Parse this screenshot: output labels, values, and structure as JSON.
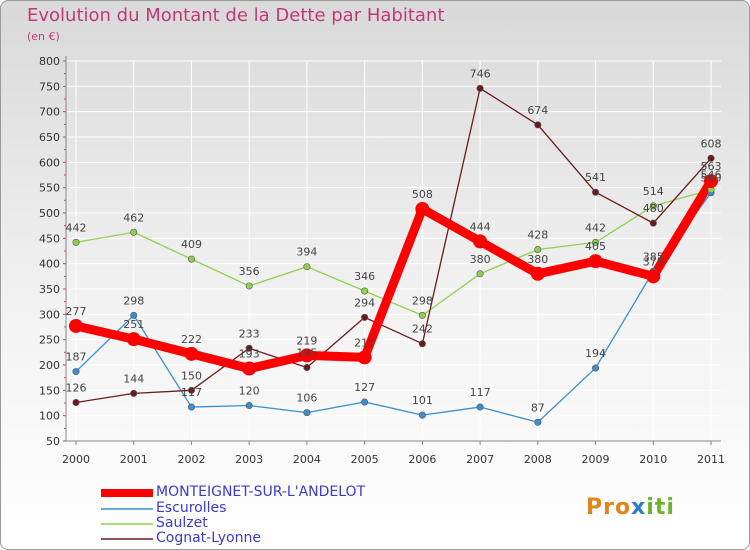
{
  "title": "Evolution du Montant de la Dette par Habitant",
  "unit": "(en €)",
  "logo_text": "Proxiti",
  "chart_data": {
    "type": "line",
    "x": [
      "2000",
      "2001",
      "2002",
      "2003",
      "2004",
      "2005",
      "2006",
      "2007",
      "2008",
      "2009",
      "2010",
      "2011"
    ],
    "ylim": [
      50,
      800
    ],
    "yticks": [
      50,
      100,
      150,
      200,
      250,
      300,
      350,
      400,
      450,
      500,
      550,
      600,
      650,
      700,
      750,
      800
    ],
    "grid": true,
    "legend_position": "bottom-left",
    "series": [
      {
        "name": "MONTEIGNET-SUR-L'ANDELOT",
        "color": "#ff0000",
        "values": [
          277,
          251,
          222,
          193,
          219,
          215,
          508,
          444,
          380,
          405,
          375,
          563
        ]
      },
      {
        "name": "Escurolles",
        "color": "#3a8fd0",
        "values": [
          187,
          298,
          117,
          120,
          106,
          127,
          101,
          117,
          87,
          194,
          385,
          540
        ]
      },
      {
        "name": "Saulzet",
        "color": "#8fd14f",
        "values": [
          442,
          462,
          409,
          356,
          394,
          346,
          298,
          380,
          428,
          442,
          514,
          546
        ]
      },
      {
        "name": "Cognat-Lyonne",
        "color": "#6b1b1b",
        "values": [
          126,
          144,
          150,
          233,
          195,
          294,
          242,
          746,
          674,
          541,
          480,
          608
        ]
      }
    ],
    "labels": [
      [
        "277",
        "251",
        "222",
        "193",
        "219",
        "215",
        "508",
        "444",
        "380",
        "405",
        "375",
        "563"
      ],
      [
        "187",
        "298",
        "117",
        "120",
        "106",
        "127",
        "101",
        "117",
        "87",
        "194",
        "385",
        "540"
      ],
      [
        "442",
        "462",
        "409",
        "356",
        "394",
        "346",
        "298",
        "380",
        "428",
        "442",
        "514",
        "546"
      ],
      [
        "126",
        "144",
        "150",
        "233",
        "195",
        "294",
        "242",
        "746",
        "674",
        "541",
        "480",
        "608"
      ]
    ]
  }
}
